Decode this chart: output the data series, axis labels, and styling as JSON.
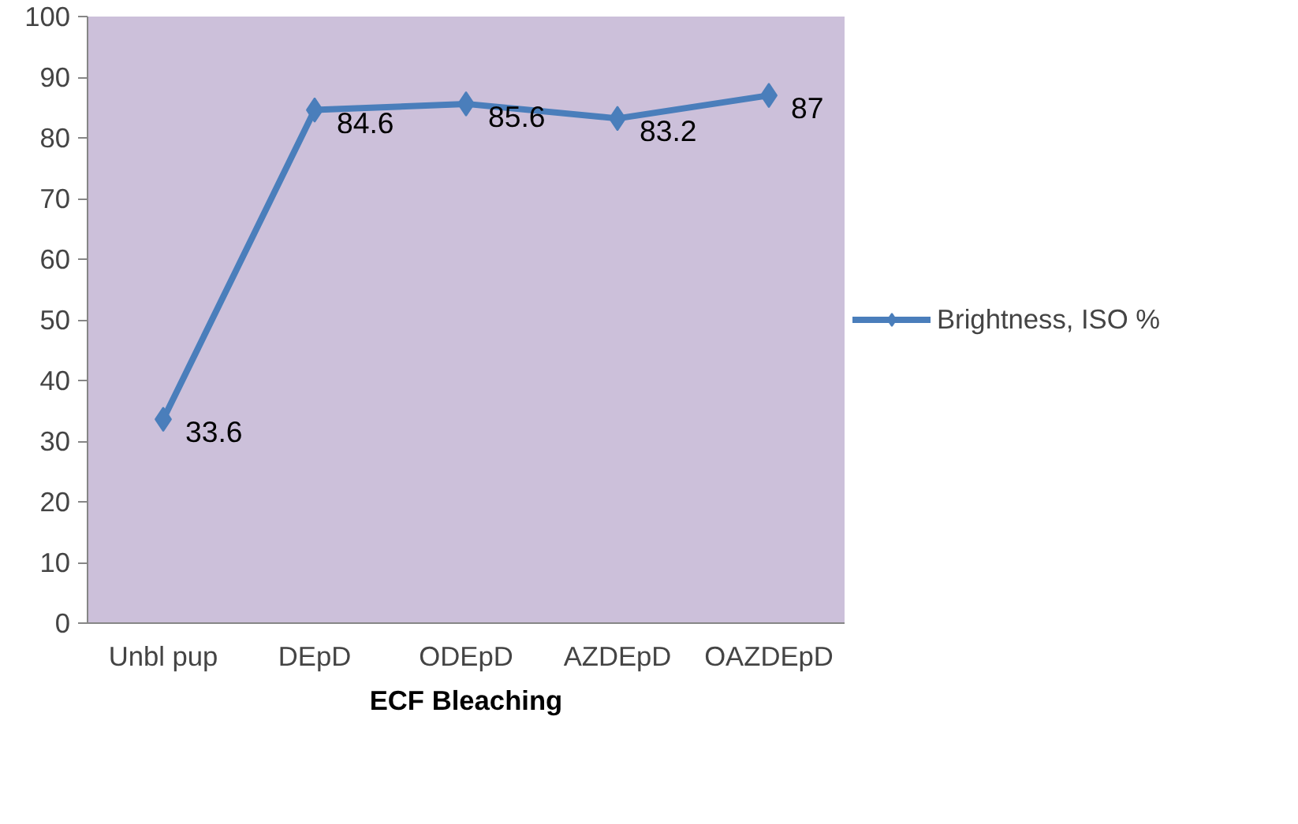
{
  "chart_data": {
    "type": "line",
    "xlabel": "ECF Bleaching",
    "categories": [
      "Unbl pup",
      "DEpD",
      "ODEpD",
      "AZDEpD",
      "OAZDEpD"
    ],
    "series": [
      {
        "name": "Brightness, ISO %",
        "color": "#4a7ebb",
        "values": [
          33.6,
          84.6,
          85.6,
          83.2,
          87
        ]
      }
    ],
    "ylim": [
      0,
      100
    ],
    "yticks": [
      0,
      10,
      20,
      30,
      40,
      50,
      60,
      70,
      80,
      90,
      100
    ],
    "grid": false,
    "legend": "right",
    "marker": "diamond",
    "line_style": "solid",
    "data_labels": true
  }
}
